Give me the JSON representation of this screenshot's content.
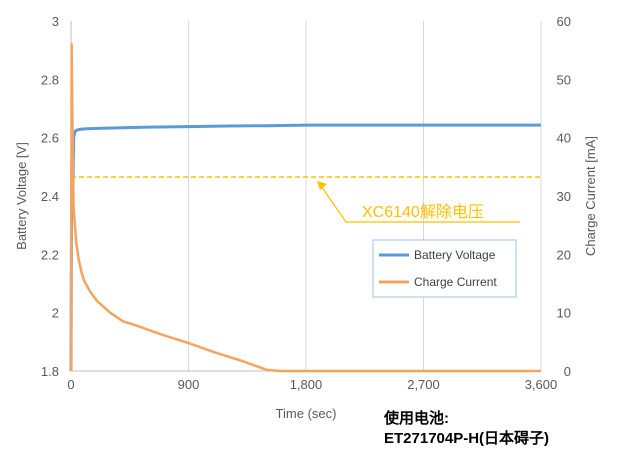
{
  "chart_data": {
    "type": "line",
    "xlabel": "Time (sec)",
    "ylabel_left": "Battery Voltage [V]",
    "ylabel_right": "Charge Current [mA]",
    "x_ticks": [
      "0",
      "900",
      "1,800",
      "2,700",
      "3,600"
    ],
    "x_tick_values": [
      0,
      900,
      1800,
      2700,
      3600
    ],
    "y_left_ticks": [
      "1.8",
      "2",
      "2.2",
      "2.4",
      "2.6",
      "2.8",
      "3"
    ],
    "y_left_tick_values": [
      1.8,
      2.0,
      2.2,
      2.4,
      2.6,
      2.8,
      3.0
    ],
    "y_right_ticks": [
      "0",
      "10",
      "20",
      "30",
      "40",
      "50",
      "60"
    ],
    "y_right_tick_values": [
      0,
      10,
      20,
      30,
      40,
      50,
      60
    ],
    "xlim": [
      0,
      3600
    ],
    "ylim_left": [
      1.8,
      3.0
    ],
    "ylim_right": [
      0,
      60
    ],
    "grid": "vertical",
    "legend_position": "center-right",
    "series": [
      {
        "name": "Battery Voltage",
        "axis": "left",
        "color": "#5b9bd5",
        "x": [
          0,
          5,
          10,
          15,
          20,
          30,
          40,
          60,
          100,
          200,
          400,
          600,
          900,
          1200,
          1500,
          1800,
          2100,
          2400,
          2700,
          3000,
          3300,
          3600
        ],
        "y": [
          1.8,
          2.5,
          2.37,
          2.42,
          2.6,
          2.62,
          2.625,
          2.628,
          2.63,
          2.632,
          2.634,
          2.636,
          2.638,
          2.64,
          2.641,
          2.643,
          2.643,
          2.643,
          2.643,
          2.643,
          2.643,
          2.643
        ]
      },
      {
        "name": "Charge Current",
        "axis": "right",
        "color": "#f4a460",
        "x": [
          0,
          5,
          10,
          15,
          20,
          30,
          40,
          60,
          80,
          100,
          150,
          200,
          300,
          400,
          500,
          600,
          700,
          800,
          900,
          1000,
          1100,
          1200,
          1300,
          1400,
          1500,
          1600,
          1700,
          1800,
          2000,
          2200,
          2400,
          2600,
          2800,
          3000,
          3200,
          3400,
          3600
        ],
        "y": [
          0,
          56,
          45,
          35,
          28,
          25,
          22,
          19,
          17,
          15.5,
          13.5,
          12,
          10,
          8.5,
          7.8,
          7,
          6.2,
          5.5,
          4.8,
          4,
          3.2,
          2.5,
          1.8,
          1,
          0.2,
          -0.8,
          -1.5,
          -1.7,
          -2.0,
          -2.1,
          -2.2,
          -2.2,
          -2.3,
          -2.3,
          -2.4,
          -2.4,
          -2.4
        ]
      }
    ],
    "annotations": [
      {
        "text": "XC6140解除电压",
        "axis": "left",
        "y": 2.465,
        "color": "#ffc000",
        "style": "dashed"
      }
    ]
  },
  "note": {
    "line1": "使用电池:",
    "line2": "ET271704P-H(日本碍子)"
  }
}
